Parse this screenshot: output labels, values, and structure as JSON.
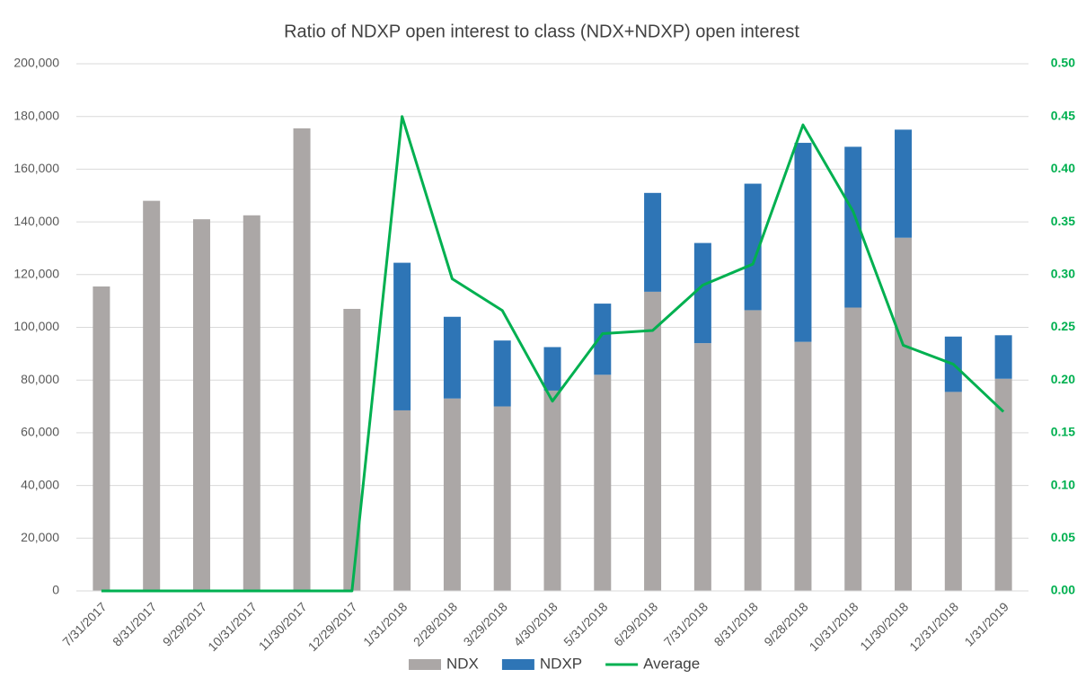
{
  "chart_data": {
    "type": "bar",
    "stacked": true,
    "title": "Ratio of NDXP open interest to class (NDX+NDXP) open interest",
    "categories": [
      "7/31/2017",
      "8/31/2017",
      "9/29/2017",
      "10/31/2017",
      "11/30/2017",
      "12/29/2017",
      "1/31/2018",
      "2/28/2018",
      "3/29/2018",
      "4/30/2018",
      "5/31/2018",
      "6/29/2018",
      "7/31/2018",
      "8/31/2018",
      "9/28/2018",
      "10/31/2018",
      "11/30/2018",
      "12/31/2018",
      "1/31/2019"
    ],
    "series": [
      {
        "name": "NDX",
        "type": "bar",
        "color": "#aba7a6",
        "values": [
          115500,
          148000,
          141000,
          142500,
          175500,
          107000,
          68500,
          73000,
          70000,
          76000,
          82000,
          113500,
          94000,
          106500,
          94500,
          107500,
          134000,
          75500,
          80500
        ]
      },
      {
        "name": "NDXP",
        "type": "bar",
        "color": "#2e75b6",
        "values": [
          0,
          0,
          0,
          0,
          0,
          0,
          56000,
          31000,
          25000,
          16500,
          27000,
          37500,
          38000,
          48000,
          75500,
          61000,
          41000,
          21000,
          16500
        ]
      },
      {
        "name": "Average",
        "type": "line",
        "axis": "y2",
        "color": "#00b050",
        "values": [
          0,
          0,
          0,
          0,
          0,
          0,
          0.45,
          0.296,
          0.266,
          0.18,
          0.244,
          0.247,
          0.29,
          0.31,
          0.442,
          0.36,
          0.233,
          0.215,
          0.17
        ]
      }
    ],
    "ylim": [
      0,
      200000
    ],
    "yticks": [
      0,
      {
        "value": 20000,
        "label": "20,000"
      },
      {
        "value": 40000,
        "label": "40,000"
      },
      {
        "value": 60000,
        "label": "60,000"
      },
      {
        "value": 80000,
        "label": "80,000"
      },
      {
        "value": 100000,
        "label": "100,000"
      },
      {
        "value": 120000,
        "label": "120,000"
      },
      {
        "value": 140000,
        "label": "140,000"
      },
      {
        "value": 160000,
        "label": "160,000"
      },
      {
        "value": 180000,
        "label": "180,000"
      },
      {
        "value": 200000,
        "label": "200,000"
      }
    ],
    "y2lim": [
      0,
      0.5
    ],
    "y2ticks": [
      {
        "value": 0,
        "label": "0.00"
      },
      {
        "value": 0.05,
        "label": "0.05"
      },
      {
        "value": 0.1,
        "label": "0.10"
      },
      {
        "value": 0.15,
        "label": "0.15"
      },
      {
        "value": 0.2,
        "label": "0.20"
      },
      {
        "value": 0.25,
        "label": "0.25"
      },
      {
        "value": 0.3,
        "label": "0.30"
      },
      {
        "value": 0.35,
        "label": "0.35"
      },
      {
        "value": 0.4,
        "label": "0.40"
      },
      {
        "value": 0.45,
        "label": "0.45"
      },
      {
        "value": 0.5,
        "label": "0.50"
      }
    ],
    "grid": true,
    "legend": "bottom"
  }
}
